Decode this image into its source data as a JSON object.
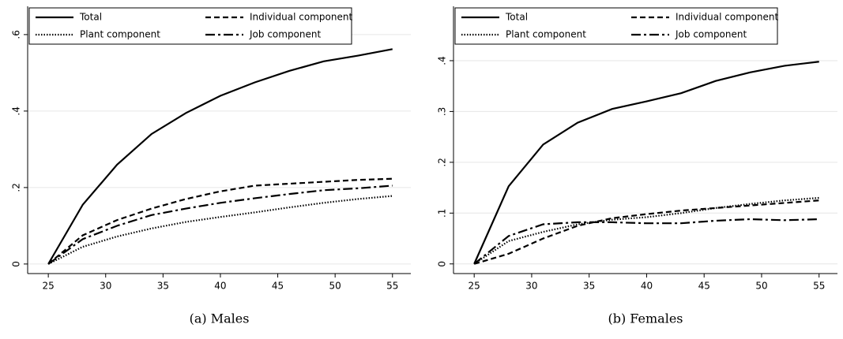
{
  "chart_data": [
    {
      "type": "line",
      "title": "(a) Males",
      "x": [
        25,
        28,
        31,
        34,
        37,
        40,
        43,
        46,
        49,
        52,
        55
      ],
      "series": [
        {
          "name": "Total",
          "color": "#000000",
          "dash": "solid",
          "values": [
            0,
            0.155,
            0.26,
            0.34,
            0.395,
            0.44,
            0.475,
            0.505,
            0.53,
            0.545,
            0.562
          ]
        },
        {
          "name": "Individual component",
          "color": "#000000",
          "dash": "dashed",
          "values": [
            0,
            0.075,
            0.115,
            0.145,
            0.17,
            0.19,
            0.205,
            0.21,
            0.215,
            0.22,
            0.223
          ]
        },
        {
          "name": "Plant component",
          "color": "#000000",
          "dash": "dotted",
          "values": [
            0,
            0.045,
            0.072,
            0.093,
            0.11,
            0.123,
            0.135,
            0.148,
            0.16,
            0.17,
            0.178
          ]
        },
        {
          "name": "Job component",
          "color": "#000000",
          "dash": "dashdot",
          "values": [
            0,
            0.065,
            0.1,
            0.128,
            0.145,
            0.16,
            0.172,
            0.183,
            0.193,
            0.198,
            0.205
          ]
        }
      ],
      "xlim": [
        23.2,
        56.6
      ],
      "xticks": [
        25,
        30,
        35,
        40,
        45,
        50,
        55
      ],
      "ylim": [
        -0.025,
        0.674
      ],
      "yticks": [
        0,
        {
          "value": 0.2,
          "label": ".2"
        },
        {
          "value": 0.4,
          "label": ".4"
        },
        {
          "value": 0.6,
          "label": ".6"
        }
      ],
      "grid": true,
      "legend": "top"
    },
    {
      "type": "line",
      "title": "(b) Females",
      "x": [
        25,
        28,
        31,
        34,
        37,
        40,
        43,
        46,
        49,
        52,
        55
      ],
      "series": [
        {
          "name": "Total",
          "color": "#000000",
          "dash": "solid",
          "values": [
            0,
            0.153,
            0.235,
            0.278,
            0.305,
            0.32,
            0.336,
            0.36,
            0.377,
            0.39,
            0.398
          ]
        },
        {
          "name": "Individual component",
          "color": "#000000",
          "dash": "dashed",
          "values": [
            0,
            0.02,
            0.05,
            0.075,
            0.09,
            0.098,
            0.105,
            0.11,
            0.115,
            0.12,
            0.125
          ]
        },
        {
          "name": "Plant component",
          "color": "#000000",
          "dash": "dotted",
          "values": [
            0,
            0.045,
            0.063,
            0.078,
            0.087,
            0.092,
            0.1,
            0.11,
            0.118,
            0.125,
            0.13
          ]
        },
        {
          "name": "Job component",
          "color": "#000000",
          "dash": "dashdot",
          "values": [
            0,
            0.055,
            0.078,
            0.082,
            0.082,
            0.08,
            0.08,
            0.085,
            0.088,
            0.086,
            0.088
          ]
        }
      ],
      "xlim": [
        23.2,
        56.6
      ],
      "xticks": [
        25,
        30,
        35,
        40,
        45,
        50,
        55
      ],
      "ylim": [
        -0.019,
        0.507
      ],
      "yticks": [
        0,
        {
          "value": 0.1,
          "label": ".1"
        },
        {
          "value": 0.2,
          "label": ".2"
        },
        {
          "value": 0.3,
          "label": ".3"
        },
        {
          "value": 0.4,
          "label": ".4"
        }
      ],
      "grid": true,
      "legend": "top"
    }
  ]
}
